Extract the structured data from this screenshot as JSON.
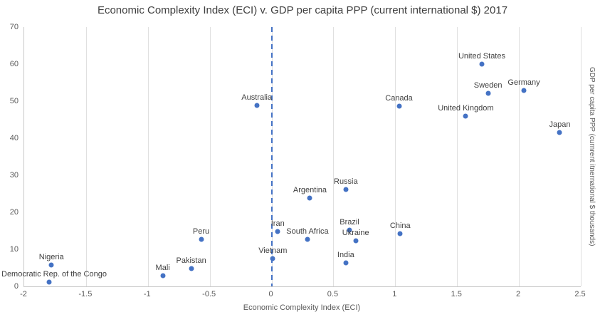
{
  "chart_data": {
    "type": "scatter",
    "title": "Economic Complexity Index (ECI) v. GDP per capita PPP (current international $) 2017",
    "xlabel": "Economic Complexity Index (ECI)",
    "ylabel_right": "GDP per capita PPP (curnrent itnernational $ thousands)",
    "xlim": [
      -2,
      2.5
    ],
    "ylim": [
      0,
      70
    ],
    "x_ticks": [
      -2,
      -1.5,
      -1,
      -0.5,
      0,
      0.5,
      1,
      1.5,
      2,
      2.5
    ],
    "y_ticks": [
      0,
      10,
      20,
      30,
      40,
      50,
      60,
      70
    ],
    "grid": "vertical-only",
    "legend": "none",
    "marker_color": "#4472c4",
    "reference_line": {
      "x": 0,
      "style": "dashed",
      "color": "#4472c4"
    },
    "points": [
      {
        "name": "Democratic Rep. of the Congo",
        "x": -1.8,
        "y": 1.2
      },
      {
        "name": "Nigeria",
        "x": -1.78,
        "y": 5.8
      },
      {
        "name": "Mali",
        "x": -0.88,
        "y": 2.8
      },
      {
        "name": "Pakistan",
        "x": -0.65,
        "y": 4.8
      },
      {
        "name": "Peru",
        "x": -0.57,
        "y": 12.7
      },
      {
        "name": "Australia",
        "x": -0.12,
        "y": 48.8
      },
      {
        "name": "Vietnam",
        "x": 0.01,
        "y": 7.5
      },
      {
        "name": "Iran",
        "x": 0.05,
        "y": 14.8
      },
      {
        "name": "South Africa",
        "x": 0.29,
        "y": 12.7
      },
      {
        "name": "Argentina",
        "x": 0.31,
        "y": 23.8
      },
      {
        "name": "Russia",
        "x": 0.6,
        "y": 26.2
      },
      {
        "name": "India",
        "x": 0.6,
        "y": 6.4
      },
      {
        "name": "Brazil",
        "x": 0.63,
        "y": 15.2
      },
      {
        "name": "Ukraine",
        "x": 0.68,
        "y": 12.3
      },
      {
        "name": "China",
        "x": 1.04,
        "y": 14.2
      },
      {
        "name": "Canada",
        "x": 1.03,
        "y": 48.6
      },
      {
        "name": "United Kingdom",
        "x": 1.57,
        "y": 46.0
      },
      {
        "name": "Sweden",
        "x": 1.75,
        "y": 52.1
      },
      {
        "name": "United States",
        "x": 1.7,
        "y": 60.0
      },
      {
        "name": "Germany",
        "x": 2.04,
        "y": 52.9
      },
      {
        "name": "Japan",
        "x": 2.33,
        "y": 41.5
      }
    ]
  }
}
